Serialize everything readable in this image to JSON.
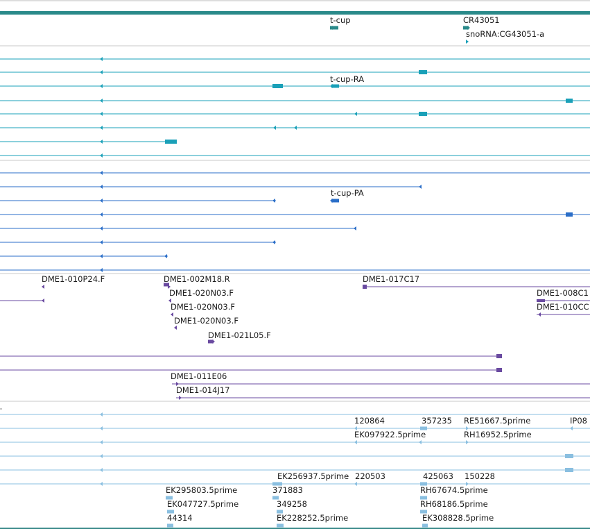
{
  "gene_labels": {
    "tcup": "t-cup",
    "cr43051": "CR43051",
    "snorna": "snoRNA:CG43051-a",
    "tcup_ra": "t-cup-RA",
    "tcup_pa": "t-cup-PA"
  },
  "clone_labels": {
    "c010p24": "DME1-010P24.F",
    "c002m18": "DME1-002M18.R",
    "c017c17": "DME1-017C17",
    "c020n03a": "DME1-020N03.F",
    "c020n03b": "DME1-020N03.F",
    "c020n03c": "DME1-020N03.F",
    "c021l05": "DME1-021L05.F",
    "c008c1": "DME1-008C1",
    "c010c": "DME1-010CC",
    "c011e06": "DME1-011E06",
    "c014j17": "DME1-014J17"
  },
  "est_labels": {
    "l120864": "120864",
    "l357235": "357235",
    "re51667": "RE51667.5prime",
    "ip08": "IP08",
    "ek097922": "EK097922.5prime",
    "rh16952": "RH16952.5prime",
    "ek256937": "EK256937.5prime",
    "l220503": "220503",
    "l425063": "425063",
    "l150228": "150228",
    "ek295803": "EK295803.5prime",
    "l371883": "371883",
    "rh67674": "RH67674.5prime",
    "ek047727": "EK047727.5prime",
    "l349258": "349258",
    "rh68186": "RH68186.5prime",
    "l44314": "44314",
    "ek228252": "EK228252.5prime",
    "ek308828": "EK308828.5prime"
  },
  "colors": {
    "gene": "#2a8a8a",
    "transcript": "#1aa0b8",
    "protein": "#2a6ec8",
    "clone": "#6a4aa0",
    "est": "#8abfe0",
    "divider": "#c8c8c8"
  }
}
